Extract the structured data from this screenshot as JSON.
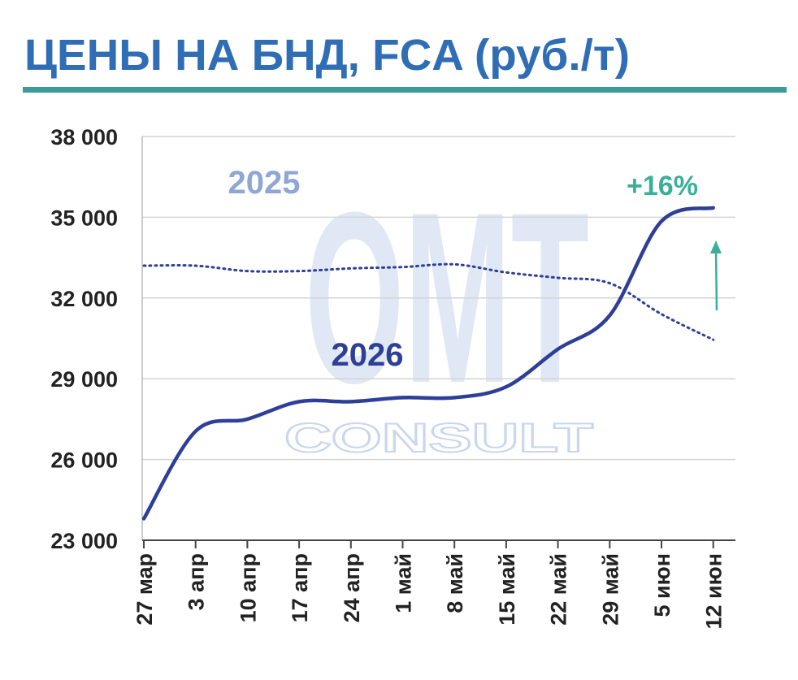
{
  "chart_data": {
    "type": "line",
    "title": "ЦЕНЫ НА БНД, FCA (руб./т)",
    "categories": [
      "27 мар",
      "3 апр",
      "10 апр",
      "17 апр",
      "24 апр",
      "1 май",
      "8 май",
      "15 май",
      "22 май",
      "29 май",
      "5 июн",
      "12 июн"
    ],
    "series": [
      {
        "name": "2025",
        "color": "#2e3f97",
        "label_color": "#8fa6d6",
        "style": "dotted",
        "values": [
          33200,
          33200,
          33000,
          33000,
          33100,
          33150,
          33250,
          32950,
          32750,
          32550,
          31400,
          30450
        ]
      },
      {
        "name": "2026",
        "color": "#2e3f97",
        "label_color": "#2e3f97",
        "style": "solid",
        "values": [
          23800,
          27050,
          27500,
          28150,
          28150,
          28300,
          28300,
          28700,
          30100,
          31350,
          34850,
          35350
        ]
      }
    ],
    "annotation": "+16%",
    "annotation_color": "#3aaf9a",
    "watermark": [
      "OMT",
      "CONSULT"
    ],
    "ylim": [
      23000,
      38000
    ],
    "yticks": [
      {
        "value": 23000,
        "label": "23 000"
      },
      {
        "value": 26000,
        "label": "26 000"
      },
      {
        "value": 29000,
        "label": "29 000"
      },
      {
        "value": 32000,
        "label": "32 000"
      },
      {
        "value": 35000,
        "label": "35 000"
      },
      {
        "value": 38000,
        "label": "38 000"
      }
    ],
    "grid": true
  }
}
